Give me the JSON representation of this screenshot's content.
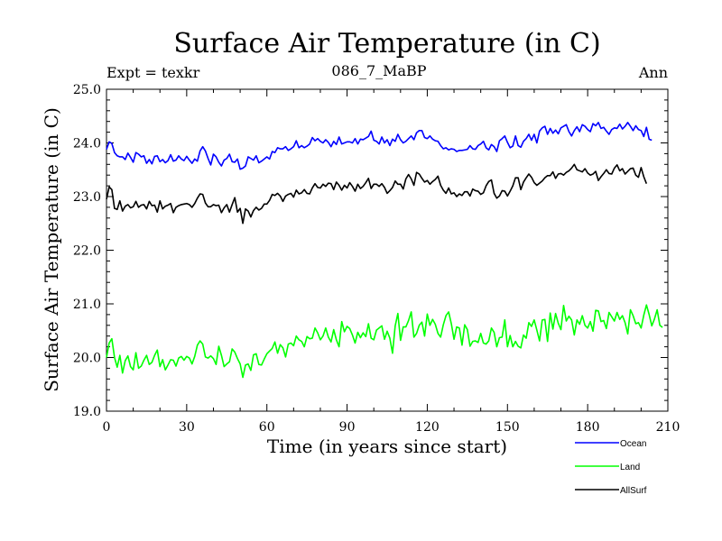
{
  "header": {
    "title": "Surface Air Temperature (in C)",
    "left": "Expt = texkr",
    "center": "086_7_MaBP",
    "right": "Ann"
  },
  "chart_data": {
    "type": "line",
    "title": "Surface Air Temperature (in C)",
    "xlabel": "Time (in years since start)",
    "ylabel": "Surface Air Temperature (in C)",
    "xlim": [
      0,
      210
    ],
    "ylim": [
      19.0,
      25.0
    ],
    "xticks": [
      0,
      30,
      60,
      90,
      120,
      150,
      180,
      210
    ],
    "yticks": [
      19.0,
      20.0,
      21.0,
      22.0,
      23.0,
      24.0,
      25.0
    ],
    "ytick_labels": [
      "19.0",
      "20.0",
      "21.0",
      "22.0",
      "23.0",
      "24.0",
      "25.0"
    ],
    "x_start": 0,
    "x_step": 1,
    "series": [
      {
        "name": "Ocean",
        "color": "#0000ff",
        "values": [
          23.88,
          24.02,
          23.99,
          23.82,
          23.76,
          23.74,
          23.74,
          23.69,
          23.81,
          23.73,
          23.64,
          23.82,
          23.79,
          23.74,
          23.76,
          23.62,
          23.69,
          23.61,
          23.75,
          23.76,
          23.65,
          23.69,
          23.63,
          23.67,
          23.78,
          23.66,
          23.68,
          23.76,
          23.7,
          23.67,
          23.75,
          23.68,
          23.62,
          23.7,
          23.66,
          23.85,
          23.93,
          23.85,
          23.71,
          23.59,
          23.79,
          23.74,
          23.64,
          23.57,
          23.68,
          23.71,
          23.79,
          23.65,
          23.64,
          23.7,
          23.51,
          23.53,
          23.57,
          23.74,
          23.71,
          23.68,
          23.76,
          23.63,
          23.66,
          23.7,
          23.74,
          23.7,
          23.84,
          23.82,
          23.91,
          23.89,
          23.89,
          23.93,
          23.86,
          23.89,
          23.93,
          24.04,
          23.91,
          23.95,
          23.91,
          23.94,
          23.98,
          24.1,
          24.04,
          24.08,
          24.03,
          24.0,
          24.06,
          24.01,
          23.93,
          24.03,
          23.97,
          24.11,
          23.98,
          24.0,
          24.02,
          24.02,
          24.0,
          24.08,
          23.98,
          24.07,
          24.06,
          24.09,
          24.12,
          24.22,
          24.05,
          24.03,
          23.98,
          24.11,
          24.0,
          24.06,
          23.95,
          24.07,
          24.03,
          24.16,
          24.06,
          24.0,
          24.03,
          24.08,
          24.13,
          24.06,
          24.19,
          24.23,
          24.23,
          24.1,
          24.08,
          24.13,
          24.07,
          24.04,
          24.03,
          23.95,
          23.89,
          23.91,
          23.87,
          23.89,
          23.88,
          23.84,
          23.86,
          23.86,
          23.87,
          23.88,
          23.95,
          23.89,
          23.88,
          23.95,
          23.98,
          24.03,
          23.91,
          23.87,
          23.97,
          23.93,
          23.84,
          24.04,
          24.08,
          24.13,
          24.01,
          23.91,
          23.94,
          24.13,
          23.95,
          23.92,
          24.03,
          24.08,
          24.16,
          24.05,
          24.16,
          24.0,
          24.22,
          24.28,
          24.31,
          24.16,
          24.27,
          24.18,
          24.24,
          24.17,
          24.28,
          24.31,
          24.34,
          24.21,
          24.13,
          24.23,
          24.3,
          24.21,
          24.34,
          24.31,
          24.25,
          24.21,
          24.36,
          24.32,
          24.38,
          24.27,
          24.29,
          24.22,
          24.16,
          24.25,
          24.28,
          24.27,
          24.35,
          24.26,
          24.31,
          24.38,
          24.31,
          24.23,
          24.32,
          24.25,
          24.23,
          24.12,
          24.29,
          24.07,
          24.05
        ]
      },
      {
        "name": "Land",
        "color": "#00ff00",
        "values": [
          20.0,
          20.27,
          20.35,
          20.0,
          19.82,
          20.04,
          19.71,
          19.94,
          20.03,
          19.83,
          19.77,
          20.09,
          19.8,
          19.84,
          19.95,
          20.04,
          19.87,
          19.91,
          20.04,
          20.14,
          19.83,
          19.96,
          19.77,
          19.86,
          19.96,
          19.95,
          19.84,
          19.99,
          20.02,
          19.95,
          20.02,
          19.99,
          19.88,
          20.02,
          20.23,
          20.31,
          20.25,
          20.01,
          19.99,
          20.03,
          19.98,
          19.87,
          20.21,
          20.04,
          19.83,
          19.88,
          19.92,
          20.16,
          20.1,
          19.98,
          19.88,
          19.63,
          19.86,
          19.88,
          19.76,
          20.05,
          20.07,
          19.87,
          19.86,
          19.97,
          20.07,
          20.12,
          20.17,
          20.29,
          20.08,
          20.24,
          20.18,
          20.01,
          20.25,
          20.27,
          20.22,
          20.4,
          20.33,
          20.3,
          20.2,
          20.39,
          20.35,
          20.36,
          20.55,
          20.46,
          20.33,
          20.4,
          20.55,
          20.38,
          20.29,
          20.52,
          20.33,
          20.2,
          20.67,
          20.48,
          20.58,
          20.54,
          20.42,
          20.27,
          20.47,
          20.37,
          20.46,
          20.39,
          20.63,
          20.36,
          20.33,
          20.51,
          20.55,
          20.59,
          20.34,
          20.49,
          20.36,
          20.08,
          20.59,
          20.82,
          20.32,
          20.57,
          20.57,
          20.69,
          20.85,
          20.38,
          20.45,
          20.6,
          20.66,
          20.4,
          20.81,
          20.6,
          20.71,
          20.62,
          20.45,
          20.38,
          20.61,
          20.78,
          20.85,
          20.63,
          20.34,
          20.57,
          20.55,
          20.23,
          20.61,
          20.52,
          20.21,
          20.3,
          20.31,
          20.28,
          20.45,
          20.27,
          20.25,
          20.31,
          20.55,
          20.47,
          20.2,
          20.37,
          20.38,
          20.7,
          20.2,
          20.41,
          20.2,
          20.3,
          20.21,
          20.18,
          20.42,
          20.36,
          20.65,
          20.58,
          20.7,
          20.51,
          20.31,
          20.7,
          20.71,
          20.3,
          20.83,
          20.53,
          20.82,
          20.64,
          20.52,
          20.97,
          20.68,
          20.77,
          20.7,
          20.42,
          20.7,
          20.62,
          20.78,
          20.6,
          20.55,
          20.67,
          20.49,
          20.88,
          20.87,
          20.67,
          20.69,
          20.54,
          20.84,
          20.76,
          20.68,
          20.84,
          20.71,
          20.78,
          20.65,
          20.44,
          20.89,
          20.78,
          20.63,
          20.65,
          20.55,
          20.79,
          20.98,
          20.8,
          20.59,
          20.72,
          20.89,
          20.6,
          20.56
        ]
      },
      {
        "name": "AllSurf",
        "color": "#000000",
        "values": [
          22.95,
          23.18,
          23.13,
          22.78,
          22.76,
          22.92,
          22.73,
          22.82,
          22.85,
          22.79,
          22.81,
          22.91,
          22.8,
          22.84,
          22.85,
          22.77,
          22.91,
          22.83,
          22.84,
          22.71,
          22.92,
          22.77,
          22.82,
          22.84,
          22.87,
          22.7,
          22.8,
          22.83,
          22.85,
          22.86,
          22.87,
          22.85,
          22.8,
          22.87,
          22.97,
          23.05,
          23.04,
          22.88,
          22.81,
          22.81,
          22.85,
          22.83,
          22.84,
          22.7,
          22.79,
          22.85,
          22.71,
          22.85,
          22.98,
          22.71,
          22.78,
          22.5,
          22.77,
          22.73,
          22.62,
          22.74,
          22.8,
          22.75,
          22.78,
          22.86,
          22.86,
          22.93,
          23.04,
          23.02,
          23.06,
          23.01,
          22.91,
          23.01,
          23.04,
          23.06,
          22.99,
          23.12,
          23.05,
          23.07,
          23.13,
          23.06,
          23.05,
          23.16,
          23.24,
          23.17,
          23.16,
          23.23,
          23.19,
          23.25,
          23.24,
          23.13,
          23.27,
          23.21,
          23.12,
          23.21,
          23.16,
          23.26,
          23.19,
          23.1,
          23.23,
          23.15,
          23.19,
          23.26,
          23.34,
          23.15,
          23.23,
          23.23,
          23.19,
          23.24,
          23.17,
          23.06,
          23.11,
          23.17,
          23.29,
          23.23,
          23.23,
          23.14,
          23.33,
          23.41,
          23.33,
          23.21,
          23.45,
          23.42,
          23.34,
          23.27,
          23.3,
          23.23,
          23.28,
          23.32,
          23.38,
          23.21,
          23.12,
          23.06,
          23.16,
          23.05,
          23.07,
          23.0,
          23.05,
          23.02,
          23.09,
          23.09,
          23.01,
          23.14,
          23.11,
          23.1,
          23.04,
          23.07,
          23.2,
          23.28,
          23.31,
          23.06,
          22.97,
          23.01,
          23.11,
          23.1,
          23.01,
          23.1,
          23.2,
          23.35,
          23.35,
          23.13,
          23.27,
          23.35,
          23.42,
          23.36,
          23.26,
          23.21,
          23.25,
          23.29,
          23.35,
          23.39,
          23.39,
          23.46,
          23.34,
          23.42,
          23.43,
          23.4,
          23.45,
          23.48,
          23.53,
          23.6,
          23.5,
          23.48,
          23.46,
          23.52,
          23.44,
          23.4,
          23.42,
          23.47,
          23.3,
          23.37,
          23.43,
          23.5,
          23.43,
          23.42,
          23.53,
          23.59,
          23.48,
          23.52,
          23.42,
          23.47,
          23.52,
          23.53,
          23.4,
          23.36,
          23.54,
          23.37,
          23.24
        ]
      }
    ]
  }
}
